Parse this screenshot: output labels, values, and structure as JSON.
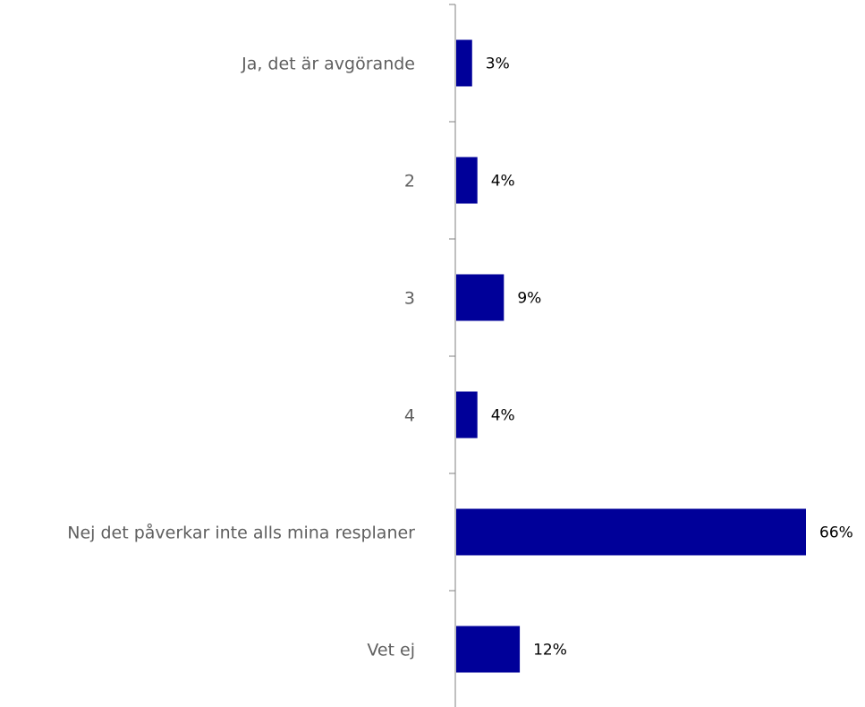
{
  "chart_data": {
    "type": "bar",
    "orientation": "horizontal",
    "title": "",
    "xlabel": "",
    "ylabel": "",
    "categories": [
      "Ja, det är avgörande",
      "2",
      "3",
      "4",
      "Nej det påverkar inte alls mina resplaner",
      "Vet ej"
    ],
    "values": [
      3,
      4,
      9,
      4,
      66,
      12
    ],
    "value_labels": [
      "3%",
      "4%",
      "9%",
      "4%",
      "66%",
      "12%"
    ],
    "unit": "%",
    "xlim": [
      0,
      66
    ],
    "bar_color": "#000099",
    "label_color": "#5f5f5f",
    "grid": false,
    "legend": "none"
  }
}
